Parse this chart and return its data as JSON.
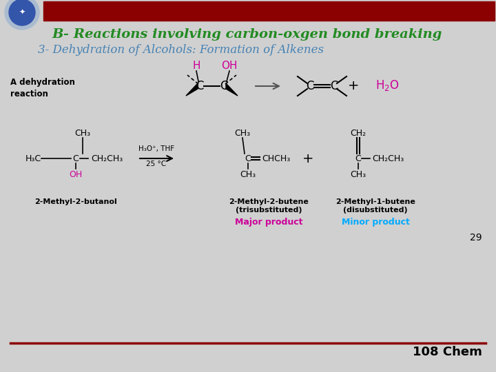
{
  "bg_color": "#d0d0d0",
  "header_bar_color": "#8b0000",
  "title_text": "B- Reactions involving carbon-oxgen bond breaking",
  "title_color": "#228B22",
  "title_fontsize": 14,
  "subtitle_text": "3- Dehydration of Alcohols: Formation of Alkenes",
  "subtitle_color": "#4682b4",
  "subtitle_fontsize": 12,
  "page_number": "29",
  "footer_text": "108 Chem",
  "footer_color": "#000000",
  "major_product_color": "#cc0099",
  "minor_product_color": "#00aaff",
  "oh_color": "#cc0099",
  "h_color": "#cc0099"
}
